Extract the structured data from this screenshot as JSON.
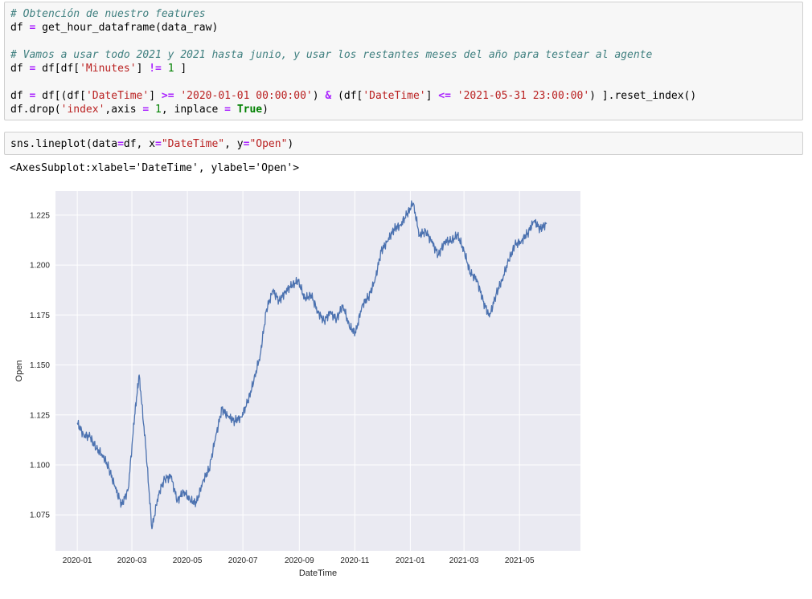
{
  "cells": [
    {
      "lines": [
        [
          {
            "t": "# Obtención de nuestro features",
            "c": "cm"
          }
        ],
        [
          {
            "t": "df "
          },
          {
            "t": "=",
            "c": "op"
          },
          {
            "t": " get_hour_dataframe(data_raw)"
          }
        ],
        [],
        [
          {
            "t": "# Vamos a usar todo 2021 y 2021 hasta junio, y usar los restantes meses del año para testear al agente",
            "c": "cm"
          }
        ],
        [
          {
            "t": "df "
          },
          {
            "t": "=",
            "c": "op"
          },
          {
            "t": " df[df["
          },
          {
            "t": "'Minutes'",
            "c": "s"
          },
          {
            "t": "] "
          },
          {
            "t": "!=",
            "c": "op"
          },
          {
            "t": " "
          },
          {
            "t": "1",
            "c": "n"
          },
          {
            "t": " ]"
          }
        ],
        [],
        [
          {
            "t": "df "
          },
          {
            "t": "=",
            "c": "op"
          },
          {
            "t": " df[(df["
          },
          {
            "t": "'DateTime'",
            "c": "s"
          },
          {
            "t": "] "
          },
          {
            "t": ">=",
            "c": "op"
          },
          {
            "t": " "
          },
          {
            "t": "'2020-01-01 00:00:00'",
            "c": "s"
          },
          {
            "t": ") "
          },
          {
            "t": "&",
            "c": "op"
          },
          {
            "t": " (df["
          },
          {
            "t": "'DateTime'",
            "c": "s"
          },
          {
            "t": "] "
          },
          {
            "t": "<=",
            "c": "op"
          },
          {
            "t": " "
          },
          {
            "t": "'2021-05-31 23:00:00'",
            "c": "s"
          },
          {
            "t": ") ].reset_index()"
          }
        ],
        [
          {
            "t": "df.drop("
          },
          {
            "t": "'index'",
            "c": "s"
          },
          {
            "t": ",axis "
          },
          {
            "t": "=",
            "c": "op"
          },
          {
            "t": " "
          },
          {
            "t": "1",
            "c": "n"
          },
          {
            "t": ", inplace "
          },
          {
            "t": "=",
            "c": "op"
          },
          {
            "t": " "
          },
          {
            "t": "True",
            "c": "kw"
          },
          {
            "t": ")"
          }
        ]
      ]
    },
    {
      "lines": [
        [
          {
            "t": "sns.lineplot(data"
          },
          {
            "t": "=",
            "c": "op"
          },
          {
            "t": "df, x"
          },
          {
            "t": "=",
            "c": "op"
          },
          {
            "t": "\"DateTime\"",
            "c": "s"
          },
          {
            "t": ", y"
          },
          {
            "t": "=",
            "c": "op"
          },
          {
            "t": "\"Open\"",
            "c": "s"
          },
          {
            "t": ")"
          }
        ]
      ]
    }
  ],
  "output_text": "<AxesSubplot:xlabel='DateTime', ylabel='Open'>",
  "chart_data": {
    "type": "line",
    "xlabel": "DateTime",
    "ylabel": "Open",
    "x_ticks": [
      "2020-01",
      "2020-03",
      "2020-05",
      "2020-07",
      "2020-09",
      "2020-11",
      "2021-01",
      "2021-03",
      "2021-05"
    ],
    "y_ticks": [
      "1.075",
      "1.100",
      "1.125",
      "1.150",
      "1.175",
      "1.200",
      "1.225"
    ],
    "xlim": [
      "2019-12-08",
      "2021-07-07"
    ],
    "ylim": [
      1.057,
      1.237
    ],
    "grid": true,
    "background": "#eaeaf2",
    "line_color": "#4c72b0",
    "series": [
      {
        "x": [
          "2020-01-01",
          "2020-01-08",
          "2020-01-15",
          "2020-01-22",
          "2020-01-29",
          "2020-02-05",
          "2020-02-12",
          "2020-02-19",
          "2020-02-26",
          "2020-03-04",
          "2020-03-09",
          "2020-03-16",
          "2020-03-23",
          "2020-03-30",
          "2020-04-06",
          "2020-04-13",
          "2020-04-20",
          "2020-04-27",
          "2020-05-04",
          "2020-05-11",
          "2020-05-18",
          "2020-05-25",
          "2020-06-01",
          "2020-06-08",
          "2020-06-15",
          "2020-06-22",
          "2020-06-29",
          "2020-07-06",
          "2020-07-13",
          "2020-07-20",
          "2020-07-27",
          "2020-08-03",
          "2020-08-10",
          "2020-08-17",
          "2020-08-24",
          "2020-08-31",
          "2020-09-07",
          "2020-09-14",
          "2020-09-21",
          "2020-09-28",
          "2020-10-05",
          "2020-10-12",
          "2020-10-19",
          "2020-10-26",
          "2020-11-02",
          "2020-11-09",
          "2020-11-16",
          "2020-11-23",
          "2020-11-30",
          "2020-12-07",
          "2020-12-14",
          "2020-12-21",
          "2020-12-28",
          "2021-01-04",
          "2021-01-11",
          "2021-01-18",
          "2021-01-25",
          "2021-02-01",
          "2021-02-08",
          "2021-02-15",
          "2021-02-22",
          "2021-03-01",
          "2021-03-08",
          "2021-03-15",
          "2021-03-22",
          "2021-03-29",
          "2021-04-05",
          "2021-04-12",
          "2021-04-19",
          "2021-04-26",
          "2021-05-03",
          "2021-05-10",
          "2021-05-17",
          "2021-05-24",
          "2021-05-31"
        ],
        "y": [
          1.121,
          1.115,
          1.114,
          1.108,
          1.105,
          1.098,
          1.088,
          1.08,
          1.088,
          1.125,
          1.145,
          1.11,
          1.068,
          1.085,
          1.093,
          1.094,
          1.082,
          1.087,
          1.082,
          1.081,
          1.092,
          1.098,
          1.114,
          1.128,
          1.124,
          1.122,
          1.124,
          1.131,
          1.142,
          1.155,
          1.178,
          1.187,
          1.182,
          1.187,
          1.19,
          1.192,
          1.183,
          1.185,
          1.177,
          1.172,
          1.176,
          1.173,
          1.18,
          1.169,
          1.166,
          1.18,
          1.184,
          1.192,
          1.207,
          1.212,
          1.218,
          1.22,
          1.225,
          1.231,
          1.215,
          1.217,
          1.211,
          1.205,
          1.212,
          1.212,
          1.215,
          1.207,
          1.196,
          1.193,
          1.182,
          1.174,
          1.185,
          1.193,
          1.202,
          1.21,
          1.212,
          1.216,
          1.222,
          1.218,
          1.221
        ]
      }
    ]
  }
}
